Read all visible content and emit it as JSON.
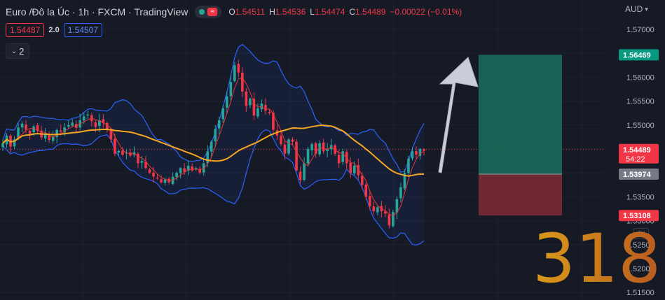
{
  "header": {
    "symbol_title": "Euro /Đô la Úc · 1h · FXCM · TradingView",
    "status_icon": "live-dot-icon",
    "ohlc": {
      "open_label": "O",
      "open": "1.54511",
      "high_label": "H",
      "high": "1.54536",
      "low_label": "L",
      "low": "1.54474",
      "close_label": "C",
      "close": "1.54489",
      "change": "−0.00022 (−0.01%)"
    },
    "bid": "1.54487",
    "spread": "2.0",
    "ask": "1.54507",
    "indicators_toggle": "2"
  },
  "axis": {
    "currency": "AUD",
    "ticks": [
      "1.57000",
      "1.56500",
      "1.56000",
      "1.55500",
      "1.55000",
      "1.54500",
      "1.54000",
      "1.53500",
      "1.53000",
      "1.52500",
      "1.52000",
      "1.51500"
    ]
  },
  "price_labels": {
    "take_profit": "1.56469",
    "current": "1.54489",
    "countdown": "54:22",
    "entry": "1.53974",
    "stop_loss": "1.53108"
  },
  "watermark": "318",
  "colors": {
    "bg": "#161a25",
    "up": "#26a69a",
    "down": "#f23645",
    "band": "#2962ff",
    "ma_orange": "#f5a623",
    "ma_red": "#e53935",
    "tp_zone": "#176a5a",
    "sl_zone": "#7a2a36"
  },
  "chart_data": {
    "type": "candlestick",
    "symbol": "Euro /Đô la Úc",
    "timeframe": "1h",
    "ylim": [
      1.514,
      1.5725
    ],
    "close_series": [
      1.5462,
      1.5478,
      1.5455,
      1.547,
      1.5495,
      1.5503,
      1.549,
      1.5482,
      1.5497,
      1.5488,
      1.5474,
      1.548,
      1.5469,
      1.5476,
      1.549,
      1.5486,
      1.5495,
      1.55,
      1.5505,
      1.5494,
      1.551,
      1.5518,
      1.5522,
      1.5508,
      1.5496,
      1.551,
      1.5504,
      1.549,
      1.547,
      1.544,
      1.5446,
      1.5438,
      1.5442,
      1.5436,
      1.5443,
      1.542,
      1.5425,
      1.541,
      1.54,
      1.5392,
      1.5388,
      1.538,
      1.5386,
      1.538,
      1.5392,
      1.54,
      1.541,
      1.5402,
      1.5415,
      1.5405,
      1.541,
      1.54,
      1.542,
      1.5445,
      1.5465,
      1.5492,
      1.551,
      1.5535,
      1.556,
      1.559,
      1.5625,
      1.561,
      1.557,
      1.554,
      1.5555,
      1.552,
      1.5535,
      1.5545,
      1.553,
      1.5525,
      1.549,
      1.5478,
      1.546,
      1.544,
      1.547,
      1.5465,
      1.5405,
      1.5385,
      1.542,
      1.545,
      1.546,
      1.544,
      1.5462,
      1.5445,
      1.545,
      1.5458,
      1.544,
      1.542,
      1.5445,
      1.542,
      1.54,
      1.5415,
      1.5395,
      1.5375,
      1.535,
      1.533,
      1.532,
      1.5328,
      1.532,
      1.5315,
      1.529,
      1.5318,
      1.5345,
      1.537,
      1.54,
      1.543,
      1.5445,
      1.5438,
      1.545,
      1.5446
    ],
    "position_tool": {
      "take_profit": 1.56469,
      "entry": 1.53974,
      "stop_loss": 1.53108
    }
  }
}
